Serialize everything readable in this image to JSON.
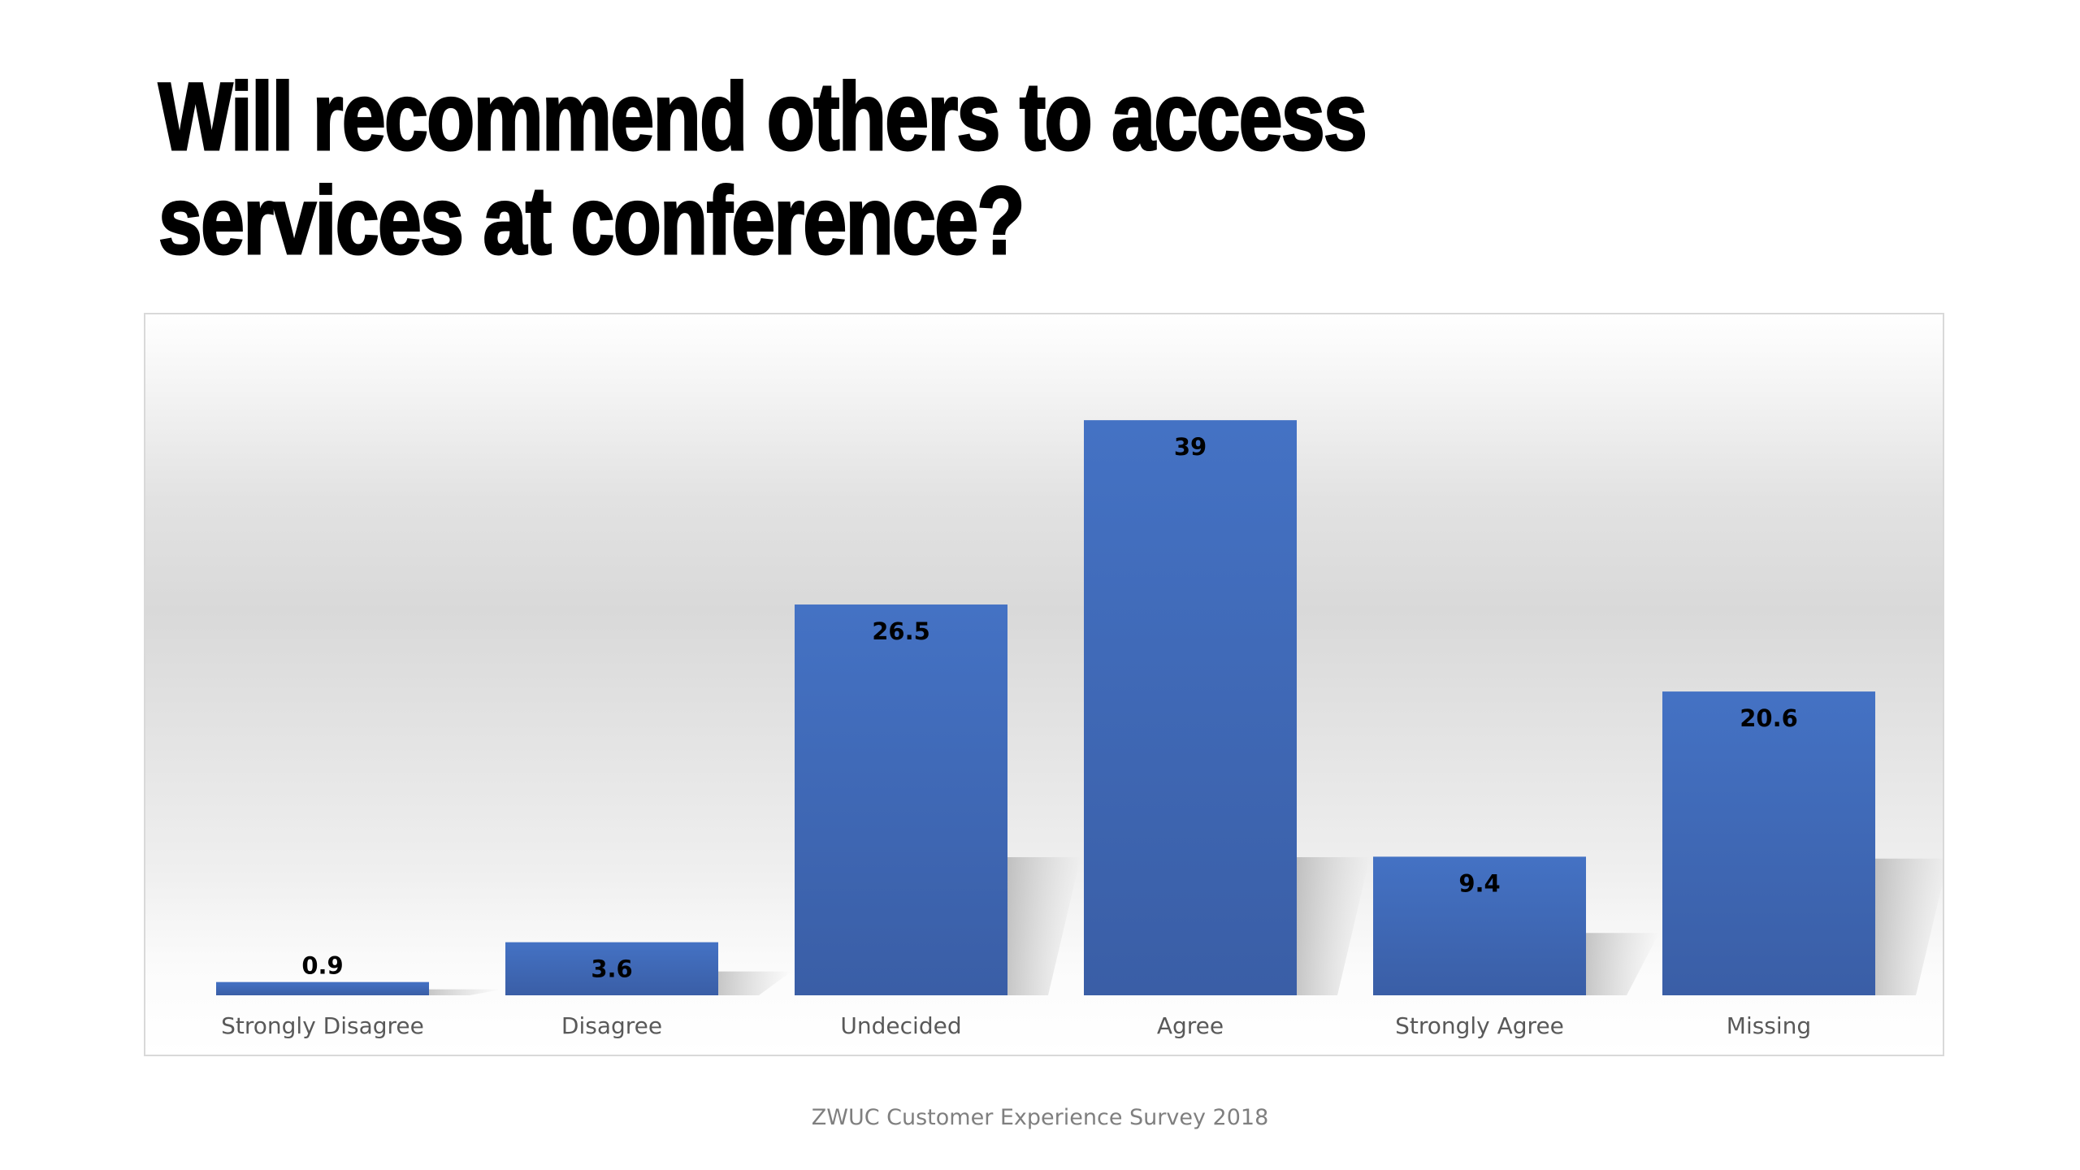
{
  "title": "Will recommend others to access services at conference?",
  "footer": "ZWUC Customer Experience Survey 2018",
  "colors": {
    "bar_top": "#4472c4",
    "bar_bottom": "#3a5ea6",
    "label_text": "#000000",
    "category_text": "#595959"
  },
  "chart_data": {
    "type": "bar",
    "title": "",
    "xlabel": "",
    "ylabel": "",
    "categories": [
      "Strongly Disagree",
      "Disagree",
      "Undecided",
      "Agree",
      "Strongly Agree",
      "Missing"
    ],
    "values": [
      0.9,
      3.6,
      26.5,
      39,
      9.4,
      20.6
    ],
    "data_labels": [
      "0.9",
      "3.6",
      "26.5",
      "39",
      "9.4",
      "20.6"
    ],
    "ylim": [
      0,
      45
    ],
    "grid": false,
    "legend": "none"
  }
}
